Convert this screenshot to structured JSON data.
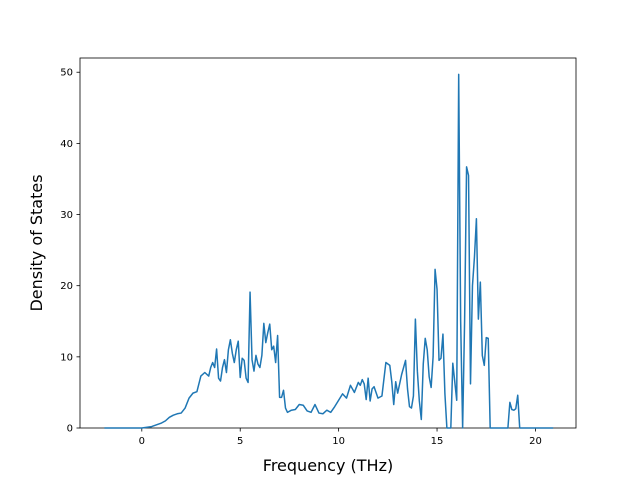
{
  "chart_data": {
    "type": "line",
    "title": "",
    "xlabel": "Frequency (THz)",
    "ylabel": "Density of States",
    "xlim": [
      -3.14,
      22.06
    ],
    "ylim": [
      0,
      52
    ],
    "xticks": [
      0,
      5,
      10,
      15,
      20
    ],
    "yticks": [
      0,
      10,
      20,
      30,
      40,
      50
    ],
    "grid": false,
    "legend": "none",
    "line_color": "#1f77b4",
    "series": [
      {
        "x": [
          -1.9,
          -1.0,
          0.0,
          0.5,
          0.8,
          1.0,
          1.2,
          1.4,
          1.6,
          1.8,
          2.0,
          2.2,
          2.4,
          2.6,
          2.8,
          3.0,
          3.2,
          3.4,
          3.5,
          3.6,
          3.7,
          3.8,
          3.9,
          4.0,
          4.1,
          4.2,
          4.3,
          4.4,
          4.5,
          4.6,
          4.7,
          4.8,
          4.9,
          5.0,
          5.1,
          5.2,
          5.3,
          5.4,
          5.5,
          5.6,
          5.7,
          5.8,
          5.9,
          6.0,
          6.1,
          6.2,
          6.3,
          6.4,
          6.5,
          6.6,
          6.7,
          6.8,
          6.9,
          7.0,
          7.1,
          7.2,
          7.3,
          7.4,
          7.6,
          7.8,
          8.0,
          8.2,
          8.4,
          8.6,
          8.8,
          9.0,
          9.2,
          9.4,
          9.6,
          9.8,
          10.0,
          10.2,
          10.4,
          10.6,
          10.8,
          11.0,
          11.1,
          11.2,
          11.3,
          11.4,
          11.5,
          11.6,
          11.7,
          11.8,
          12.0,
          12.2,
          12.4,
          12.6,
          12.7,
          12.8,
          12.9,
          13.0,
          13.2,
          13.4,
          13.5,
          13.6,
          13.7,
          13.8,
          13.9,
          14.0,
          14.1,
          14.2,
          14.3,
          14.4,
          14.5,
          14.6,
          14.7,
          14.8,
          14.9,
          15.0,
          15.1,
          15.2,
          15.3,
          15.4,
          15.5,
          15.6,
          15.7,
          15.8,
          15.9,
          16.0,
          16.1,
          16.2,
          16.3,
          16.4,
          16.5,
          16.6,
          16.7,
          16.8,
          16.9,
          17.0,
          17.1,
          17.2,
          17.3,
          17.4,
          17.5,
          17.6,
          17.7,
          17.8,
          17.9,
          18.0,
          18.2,
          18.4,
          18.6,
          18.7,
          18.8,
          18.9,
          19.0,
          19.1,
          19.2,
          19.3,
          19.4,
          19.5,
          19.6,
          20.0,
          20.9
        ],
        "y": [
          0,
          0,
          0,
          0.2,
          0.5,
          0.7,
          1.0,
          1.5,
          1.8,
          2.0,
          2.1,
          2.8,
          4.2,
          4.9,
          5.1,
          7.3,
          7.8,
          7.3,
          8.5,
          9.2,
          8.5,
          11.1,
          7.0,
          6.6,
          8.5,
          9.6,
          7.8,
          11.0,
          12.4,
          10.5,
          9.2,
          11.0,
          12.2,
          7.1,
          9.8,
          9.5,
          7.0,
          6.4,
          19.1,
          9.6,
          8.0,
          10.2,
          9.0,
          8.5,
          10.2,
          14.7,
          12.0,
          13.4,
          14.6,
          11.0,
          11.5,
          9.2,
          13.0,
          4.3,
          4.3,
          5.3,
          2.8,
          2.2,
          2.5,
          2.6,
          3.3,
          3.2,
          2.4,
          2.2,
          3.3,
          2.1,
          2.0,
          2.5,
          2.2,
          3.0,
          3.9,
          4.8,
          4.2,
          6.0,
          5.0,
          6.4,
          6.0,
          6.8,
          6.2,
          4.0,
          7.0,
          3.8,
          5.5,
          5.8,
          4.2,
          4.5,
          9.2,
          8.8,
          6.5,
          3.3,
          6.5,
          4.9,
          7.5,
          9.5,
          5.5,
          3.0,
          2.8,
          4.5,
          15.3,
          8.0,
          3.8,
          1.2,
          9.0,
          12.6,
          11.0,
          7.2,
          5.7,
          10.0,
          22.3,
          19.5,
          9.5,
          9.8,
          13.2,
          4.8,
          0,
          0,
          0,
          9.1,
          6.5,
          3.9,
          49.7,
          15.0,
          0,
          15.0,
          36.7,
          35.5,
          6.2,
          20.0,
          24.0,
          29.4,
          15.3,
          20.5,
          10.2,
          8.8,
          12.7,
          12.6,
          0,
          0,
          0,
          0,
          0,
          0,
          0,
          3.6,
          2.6,
          2.5,
          2.7,
          4.6,
          0,
          0,
          0,
          0,
          0,
          0,
          0
        ]
      }
    ]
  }
}
